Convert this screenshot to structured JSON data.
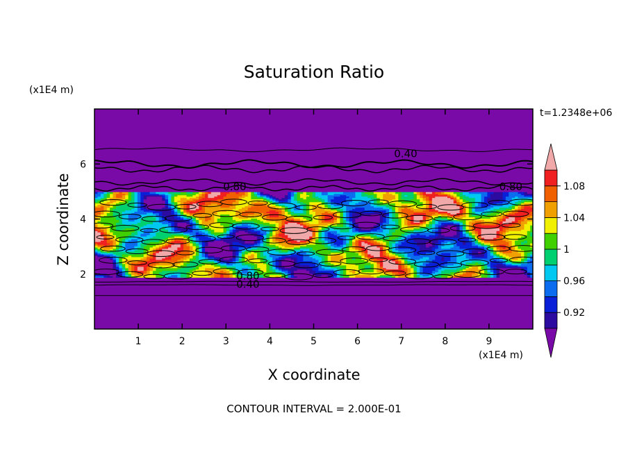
{
  "chart_data": {
    "type": "heatmap",
    "title": "Saturation Ratio",
    "xlabel": "X coordinate",
    "ylabel": "Z coordinate",
    "x_unit": "(x1E4 m)",
    "y_unit": "(x1E4 m)",
    "time_label": "t=1.2348e+06",
    "footer": "CONTOUR INTERVAL = 2.000E-01",
    "xlim": [
      0,
      10
    ],
    "ylim": [
      0,
      8
    ],
    "x_ticks": [
      "1",
      "2",
      "3",
      "4",
      "5",
      "6",
      "7",
      "8",
      "9"
    ],
    "y_ticks": [
      "2",
      "4",
      "6"
    ],
    "colorbar": {
      "levels": [
        0.9,
        0.92,
        0.94,
        0.96,
        0.98,
        1.0,
        1.02,
        1.04,
        1.06,
        1.08,
        1.1
      ],
      "tick_labels": [
        "0.92",
        "0.96",
        "1",
        "1.04",
        "1.08"
      ],
      "colors": [
        "#7a0aa8",
        "#2c0ca0",
        "#0a20d8",
        "#0c6cf0",
        "#00c8f0",
        "#00d070",
        "#40d000",
        "#f0f000",
        "#f0a000",
        "#f06000",
        "#f02020",
        "#f0a8a8"
      ],
      "below_color": "#7a0aa8",
      "above_color": "#f0a8a8"
    },
    "contour_labels": [
      {
        "text": "0.40",
        "x": 7.1,
        "z": 6.25
      },
      {
        "text": "0.80",
        "x": 3.2,
        "z": 5.05
      },
      {
        "text": "0.80",
        "x": 9.5,
        "z": 5.05
      },
      {
        "text": "0.80",
        "x": 3.5,
        "z": 1.8
      },
      {
        "text": "0.40",
        "x": 3.5,
        "z": 1.5
      }
    ],
    "grid": false,
    "legend": "right"
  }
}
